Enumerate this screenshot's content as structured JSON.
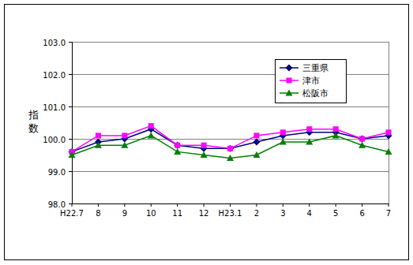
{
  "chart_data": {
    "type": "line",
    "y_label": "指数",
    "categories": [
      "H22.7",
      "8",
      "9",
      "10",
      "11",
      "12",
      "H23.1",
      "2",
      "3",
      "4",
      "5",
      "6",
      "7"
    ],
    "series": [
      {
        "name": "三重県",
        "color": "#000080",
        "marker": "diamond",
        "values": [
          99.6,
          99.9,
          100.0,
          100.3,
          99.8,
          99.7,
          99.7,
          99.9,
          100.1,
          100.2,
          100.2,
          100.0,
          100.1
        ]
      },
      {
        "name": "津市",
        "color": "#ff00ff",
        "marker": "square",
        "values": [
          99.6,
          100.1,
          100.1,
          100.4,
          99.8,
          99.8,
          99.7,
          100.1,
          100.2,
          100.3,
          100.3,
          100.0,
          100.2
        ]
      },
      {
        "name": "松阪市",
        "color": "#008000",
        "marker": "triangle",
        "values": [
          99.5,
          99.8,
          99.8,
          100.1,
          99.6,
          99.5,
          99.4,
          99.5,
          99.9,
          99.9,
          100.1,
          99.8,
          99.6
        ]
      }
    ],
    "ylim": [
      98,
      103
    ],
    "yticks": [
      {
        "value": 98,
        "label": "98.0"
      },
      {
        "value": 99,
        "label": "99.0"
      },
      {
        "value": 100,
        "label": "100.0"
      },
      {
        "value": 101,
        "label": "101.0"
      },
      {
        "value": 102,
        "label": "102.0"
      },
      {
        "value": 103,
        "label": "103.0"
      }
    ],
    "grid": true,
    "legend": "top-right"
  }
}
